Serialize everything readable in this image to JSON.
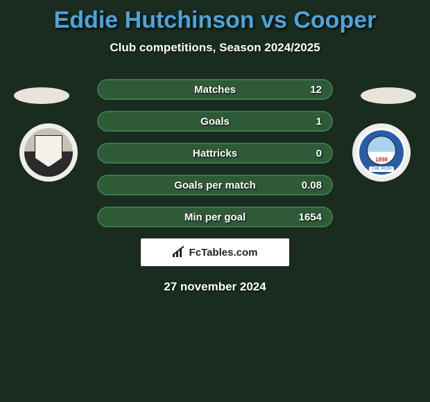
{
  "title": "Eddie Hutchinson vs Cooper",
  "title_color": "#4fa3d9",
  "subtitle": "Club competitions, Season 2024/2025",
  "date": "27 november 2024",
  "attribution": "FcTables.com",
  "background_color": "#1a2b1f",
  "row_border_color": "#3d7a4a",
  "row_fill_color": "#2e5a38",
  "stats": [
    {
      "label": "Matches",
      "value": "12"
    },
    {
      "label": "Goals",
      "value": "1"
    },
    {
      "label": "Hattricks",
      "value": "0"
    },
    {
      "label": "Goals per match",
      "value": "0.08"
    },
    {
      "label": "Min per goal",
      "value": "1654"
    }
  ],
  "player_left": {
    "name": "Eddie Hutchinson"
  },
  "player_right": {
    "name": "Cooper"
  },
  "crest_left": {
    "desc": "shield-crest"
  },
  "crest_right": {
    "desc": "Braintree Town FC",
    "year": "1898",
    "motto": "THE IRON"
  }
}
